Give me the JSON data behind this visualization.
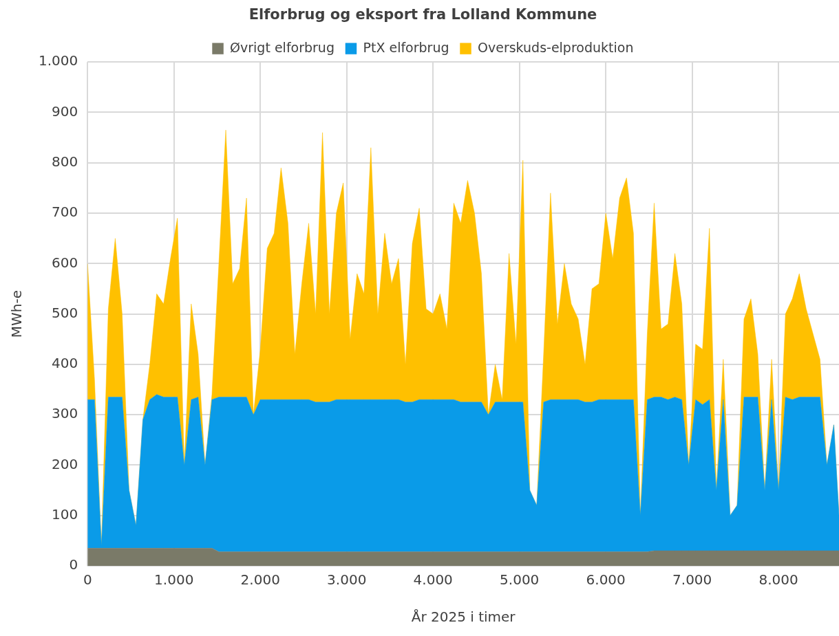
{
  "chart_data": {
    "type": "area",
    "stacked": true,
    "title": "Elforbrug og eksport fra Lolland Kommune",
    "xlabel": "År 2025 i timer",
    "ylabel": "MWh-e",
    "legend": "top",
    "grid": true,
    "x": [
      0,
      80,
      160,
      240,
      320,
      400,
      480,
      560,
      640,
      720,
      800,
      880,
      960,
      1040,
      1120,
      1200,
      1280,
      1360,
      1440,
      1520,
      1600,
      1680,
      1760,
      1840,
      1920,
      2000,
      2080,
      2160,
      2240,
      2320,
      2400,
      2480,
      2560,
      2640,
      2720,
      2800,
      2880,
      2960,
      3040,
      3120,
      3200,
      3280,
      3360,
      3440,
      3520,
      3600,
      3680,
      3760,
      3840,
      3920,
      4000,
      4080,
      4160,
      4240,
      4320,
      4400,
      4480,
      4560,
      4640,
      4720,
      4800,
      4880,
      4960,
      5040,
      5120,
      5200,
      5280,
      5360,
      5440,
      5520,
      5600,
      5680,
      5760,
      5840,
      5920,
      6000,
      6080,
      6160,
      6240,
      6320,
      6400,
      6480,
      6560,
      6640,
      6720,
      6800,
      6880,
      6960,
      7040,
      7120,
      7200,
      7280,
      7360,
      7440,
      7520,
      7600,
      7680,
      7760,
      7840,
      7920,
      8000,
      8080,
      8160,
      8240,
      8320,
      8400,
      8480,
      8560,
      8640,
      8700
    ],
    "series": [
      {
        "name": "Øvrigt elforbrug",
        "color": "#7a7a68",
        "values": [
          35,
          35,
          35,
          35,
          35,
          35,
          35,
          35,
          35,
          35,
          35,
          35,
          35,
          35,
          35,
          35,
          35,
          35,
          35,
          28,
          28,
          28,
          28,
          28,
          28,
          28,
          28,
          28,
          28,
          28,
          28,
          28,
          28,
          28,
          28,
          28,
          28,
          28,
          28,
          28,
          28,
          28,
          28,
          28,
          28,
          28,
          28,
          28,
          28,
          28,
          28,
          28,
          28,
          28,
          28,
          28,
          28,
          28,
          28,
          28,
          28,
          28,
          28,
          28,
          28,
          28,
          28,
          28,
          28,
          28,
          28,
          28,
          28,
          28,
          28,
          28,
          28,
          28,
          28,
          28,
          28,
          28,
          30,
          30,
          30,
          30,
          30,
          30,
          30,
          30,
          30,
          30,
          30,
          30,
          30,
          30,
          30,
          30,
          30,
          30,
          30,
          30,
          30,
          30,
          30,
          30,
          30,
          30,
          30,
          30
        ]
      },
      {
        "name": "PtX elforbrug",
        "color": "#0a9be8",
        "values": [
          295,
          295,
          5,
          300,
          300,
          300,
          115,
          45,
          255,
          295,
          305,
          300,
          300,
          300,
          165,
          295,
          300,
          165,
          295,
          307,
          307,
          307,
          307,
          307,
          272,
          302,
          302,
          302,
          302,
          302,
          302,
          302,
          302,
          297,
          297,
          297,
          302,
          302,
          302,
          302,
          302,
          302,
          302,
          302,
          302,
          302,
          297,
          297,
          302,
          302,
          302,
          302,
          302,
          302,
          297,
          297,
          297,
          297,
          272,
          297,
          297,
          297,
          297,
          297,
          122,
          92,
          297,
          302,
          302,
          302,
          302,
          302,
          297,
          297,
          302,
          302,
          302,
          302,
          302,
          302,
          72,
          302,
          305,
          305,
          300,
          305,
          300,
          170,
          300,
          290,
          300,
          120,
          300,
          70,
          90,
          305,
          305,
          305,
          120,
          300,
          120,
          305,
          300,
          305,
          305,
          305,
          305,
          170,
          250,
          70
        ]
      },
      {
        "name": "Overskuds-elproduktion",
        "color": "#ffc000",
        "values": [
          270,
          40,
          0,
          175,
          315,
          165,
          0,
          0,
          0,
          70,
          200,
          185,
          275,
          355,
          0,
          190,
          85,
          0,
          10,
          265,
          530,
          225,
          255,
          395,
          0,
          100,
          300,
          330,
          460,
          350,
          90,
          230,
          350,
          175,
          535,
          175,
          370,
          430,
          120,
          250,
          210,
          500,
          170,
          330,
          230,
          280,
          75,
          315,
          380,
          180,
          170,
          210,
          140,
          390,
          355,
          440,
          375,
          255,
          0,
          75,
          5,
          295,
          115,
          480,
          0,
          0,
          95,
          410,
          150,
          270,
          190,
          160,
          75,
          225,
          230,
          370,
          280,
          400,
          440,
          330,
          0,
          130,
          385,
          135,
          150,
          285,
          190,
          0,
          110,
          110,
          340,
          0,
          80,
          0,
          0,
          155,
          195,
          85,
          0,
          80,
          0,
          165,
          200,
          245,
          175,
          125,
          75,
          0,
          0,
          0
        ]
      }
    ],
    "xlim": [
      0,
      8700
    ],
    "xticks": [
      0,
      {
        "value": 1000,
        "label": "1.000"
      },
      {
        "value": 2000,
        "label": "2.000"
      },
      {
        "value": 3000,
        "label": "3.000"
      },
      {
        "value": 4000,
        "label": "4.000"
      },
      {
        "value": 5000,
        "label": "5.000"
      },
      {
        "value": 6000,
        "label": "6.000"
      },
      {
        "value": 7000,
        "label": "7.000"
      },
      {
        "value": 8000,
        "label": "8.000"
      }
    ],
    "ylim": [
      0,
      1000
    ],
    "yticks": [
      0,
      100,
      200,
      300,
      400,
      500,
      600,
      700,
      800,
      900,
      {
        "value": 1000,
        "label": "1.000"
      }
    ]
  }
}
